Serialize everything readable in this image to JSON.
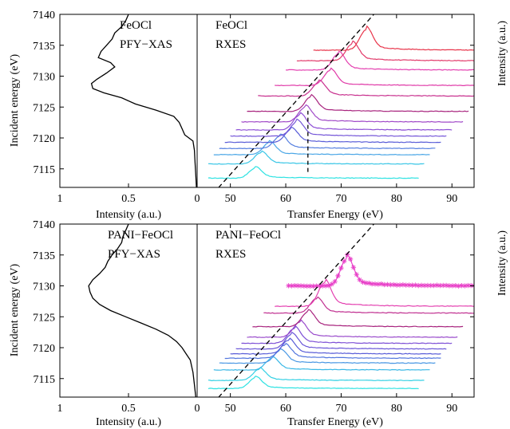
{
  "chart_data": [
    {
      "id": "feocl",
      "type": "line",
      "xas": {
        "title_lines": [
          "FeOCl",
          "PFY−XAS"
        ],
        "xlabel": "Intensity (a.u.)",
        "ylabel": "Incident energy (eV)",
        "xticks": [
          1,
          0.5,
          0
        ],
        "xlim": [
          1,
          0
        ],
        "ylim": [
          7112,
          7140
        ],
        "yticks": [
          7115,
          7120,
          7125,
          7130,
          7135,
          7140
        ],
        "curve": {
          "y": [
            7112,
            7114,
            7116,
            7118,
            7119.5,
            7120.5,
            7121.5,
            7122.5,
            7123.5,
            7124.5,
            7125.5,
            7126.5,
            7127.3,
            7128,
            7128.8,
            7129.5,
            7130.5,
            7131.5,
            7132.2,
            7133,
            7134,
            7135,
            7136,
            7137,
            7138,
            7139,
            7140
          ],
          "x": [
            0.005,
            0.01,
            0.015,
            0.02,
            0.03,
            0.09,
            0.11,
            0.13,
            0.17,
            0.3,
            0.45,
            0.55,
            0.68,
            0.76,
            0.77,
            0.73,
            0.66,
            0.6,
            0.63,
            0.72,
            0.7,
            0.66,
            0.62,
            0.6,
            0.55,
            0.52,
            0.5
          ]
        }
      },
      "rxes": {
        "title_lines": [
          "FeOCl",
          "RXES"
        ],
        "xlabel": "Transfer Energy (eV)",
        "y2label": "Intensity (a.u.)",
        "xlim": [
          44,
          94
        ],
        "ylim": [
          7112,
          7140
        ],
        "xticks": [
          50,
          60,
          70,
          80,
          90
        ],
        "diagonal": {
          "x": [
            44,
            80
          ],
          "y": [
            7108.1,
            7144.1
          ]
        },
        "vline": {
          "x": 64,
          "y": [
            7114.5,
            7124.4
          ]
        },
        "series": [
          {
            "baseline": 7113.5,
            "color": "#2ee2e2",
            "peak": 54.5,
            "amp": 1.6,
            "xmin": 46,
            "xmax": 84
          },
          {
            "baseline": 7115.8,
            "color": "#39c6e6",
            "peak": 55.5,
            "amp": 1.8,
            "xmin": 46,
            "xmax": 85
          },
          {
            "baseline": 7117.3,
            "color": "#4aa6e6",
            "peak": 57,
            "amp": 1.9,
            "xmin": 47,
            "xmax": 86
          },
          {
            "baseline": 7118.3,
            "color": "#5680e0",
            "peak": 59,
            "amp": 2.0,
            "xmin": 48,
            "xmax": 87
          },
          {
            "baseline": 7119.3,
            "color": "#5a5ed8",
            "peak": 61,
            "amp": 2.1,
            "xmin": 49,
            "xmax": 88
          },
          {
            "baseline": 7120.3,
            "color": "#7455d8",
            "peak": 62,
            "amp": 2.3,
            "xmin": 50,
            "xmax": 89
          },
          {
            "baseline": 7121.3,
            "color": "#8e4fd6",
            "peak": 62.5,
            "amp": 2.4,
            "xmin": 51,
            "xmax": 90
          },
          {
            "baseline": 7122.6,
            "color": "#a14ac8",
            "peak": 63.5,
            "amp": 2.4,
            "xmin": 52,
            "xmax": 92
          },
          {
            "baseline": 7124.3,
            "color": "#a8247e",
            "peak": 64.5,
            "amp": 2.3,
            "xmin": 53,
            "xmax": 93
          },
          {
            "baseline": 7126.8,
            "color": "#c8308e",
            "peak": 66,
            "amp": 2.2,
            "xmin": 55,
            "xmax": 94
          },
          {
            "baseline": 7128.5,
            "color": "#e03aa8",
            "peak": 68,
            "amp": 2.4,
            "xmin": 58,
            "xmax": 94
          },
          {
            "baseline": 7131.0,
            "color": "#e440b0",
            "peak": 69.5,
            "amp": 2.6,
            "xmin": 60,
            "xmax": 94
          },
          {
            "baseline": 7132.5,
            "color": "#e23a6a",
            "peak": 72,
            "amp": 2.7,
            "xmin": 62,
            "xmax": 94
          },
          {
            "baseline": 7134.2,
            "color": "#e8344a",
            "peak": 74.5,
            "amp": 3.3,
            "xmin": 65,
            "xmax": 94
          }
        ]
      }
    },
    {
      "id": "pani",
      "type": "line",
      "xas": {
        "title_lines": [
          "PANI−FeOCl",
          "PFY−XAS"
        ],
        "xlabel": "Intensity (a.u.)",
        "ylabel": "Incident energy (eV)",
        "xticks": [
          1,
          0.5,
          0
        ],
        "xlim": [
          1,
          0
        ],
        "ylim": [
          7112,
          7140
        ],
        "yticks": [
          7115,
          7120,
          7125,
          7130,
          7135,
          7140
        ],
        "curve": {
          "y": [
            7112,
            7114,
            7116,
            7118,
            7119,
            7120,
            7121,
            7122,
            7123,
            7124,
            7125,
            7126,
            7127,
            7128,
            7129,
            7130,
            7131,
            7132,
            7133,
            7134,
            7135,
            7136,
            7137,
            7138,
            7139,
            7140
          ],
          "x": [
            0.01,
            0.02,
            0.03,
            0.05,
            0.08,
            0.11,
            0.15,
            0.21,
            0.3,
            0.41,
            0.52,
            0.63,
            0.71,
            0.76,
            0.78,
            0.79,
            0.76,
            0.71,
            0.67,
            0.65,
            0.62,
            0.58,
            0.55,
            0.54,
            0.52,
            0.5
          ]
        }
      },
      "rxes": {
        "title_lines": [
          "PANI−FeOCl",
          "RXES"
        ],
        "xlabel": "Transfer Energy (eV)",
        "y2label": "Intensity (a.u.)",
        "xlim": [
          44,
          94
        ],
        "ylim": [
          7112,
          7140
        ],
        "xticks": [
          50,
          60,
          70,
          80,
          90
        ],
        "diagonal": {
          "x": [
            44,
            80
          ],
          "y": [
            7108.1,
            7144.1
          ]
        },
        "series": [
          {
            "baseline": 7113.4,
            "color": "#2ee2e2",
            "peak": 54.5,
            "amp": 1.7,
            "xmin": 46,
            "xmax": 84
          },
          {
            "baseline": 7114.7,
            "color": "#33d0e4",
            "peak": 55.2,
            "amp": 1.8,
            "xmin": 46,
            "xmax": 85
          },
          {
            "baseline": 7116.4,
            "color": "#3ab8e6",
            "peak": 57.5,
            "amp": 1.9,
            "xmin": 47,
            "xmax": 86
          },
          {
            "baseline": 7117.5,
            "color": "#4a98e4",
            "peak": 59,
            "amp": 2.0,
            "xmin": 48,
            "xmax": 87
          },
          {
            "baseline": 7118.3,
            "color": "#5276de",
            "peak": 59.8,
            "amp": 2.1,
            "xmin": 49,
            "xmax": 88
          },
          {
            "baseline": 7119.0,
            "color": "#5a5ed8",
            "peak": 60.5,
            "amp": 2.2,
            "xmin": 50,
            "xmax": 88
          },
          {
            "baseline": 7119.8,
            "color": "#6a56d8",
            "peak": 61,
            "amp": 2.3,
            "xmin": 51,
            "xmax": 89
          },
          {
            "baseline": 7120.7,
            "color": "#7e50d6",
            "peak": 61.5,
            "amp": 2.4,
            "xmin": 52,
            "xmax": 90
          },
          {
            "baseline": 7121.7,
            "color": "#9a4ccc",
            "peak": 62.5,
            "amp": 2.4,
            "xmin": 53,
            "xmax": 91
          },
          {
            "baseline": 7123.4,
            "color": "#a8247e",
            "peak": 64,
            "amp": 2.4,
            "xmin": 54,
            "xmax": 92
          },
          {
            "baseline": 7125.6,
            "color": "#c02f90",
            "peak": 65.5,
            "amp": 2.3,
            "xmin": 56,
            "xmax": 94
          },
          {
            "baseline": 7126.7,
            "color": "#e440b0",
            "peak": 67,
            "amp": 3.8,
            "xmin": 58,
            "xmax": 94
          },
          {
            "baseline": 7130.0,
            "color": "#e840c8",
            "peak": 71,
            "amp": 4.3,
            "xmin": 60.5,
            "xmax": 94,
            "markers": true
          }
        ]
      }
    }
  ]
}
